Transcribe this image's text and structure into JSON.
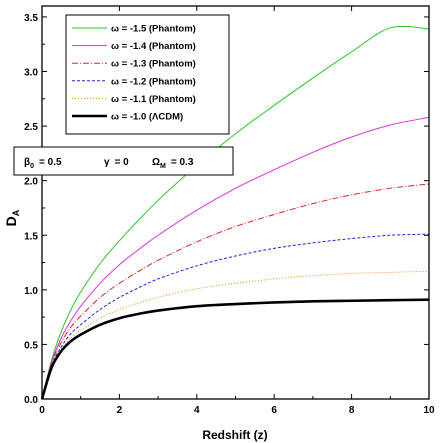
{
  "chart_data": {
    "type": "line",
    "xlabel": "Redshift (z)",
    "ylabel": "D",
    "ylabel_sub": "A",
    "xlim": [
      0,
      10
    ],
    "ylim": [
      0,
      3.6
    ],
    "xticks": [
      "0",
      "2",
      "4",
      "6",
      "8",
      "10"
    ],
    "yticks": [
      "0.0",
      "0.5",
      "1.0",
      "1.5",
      "2.0",
      "2.5",
      "3.0",
      "3.5"
    ],
    "grid": false,
    "legend_position": "top-left",
    "x": [
      0,
      0.25,
      0.5,
      0.75,
      1,
      1.5,
      2,
      2.5,
      3,
      4,
      5,
      6,
      7,
      8,
      9,
      10
    ],
    "series": [
      {
        "name": "ω = -1.5 (Phantom)",
        "color": "#22cc22",
        "dash": "solid",
        "values": [
          0,
          0.36,
          0.62,
          0.82,
          0.98,
          1.24,
          1.45,
          1.64,
          1.82,
          2.14,
          2.43,
          2.69,
          2.94,
          3.18,
          3.4,
          3.39
        ]
      },
      {
        "name": "ω = -1.4 (Phantom)",
        "color": "#dd33dd",
        "dash": "solid",
        "values": [
          0,
          0.34,
          0.56,
          0.72,
          0.85,
          1.06,
          1.23,
          1.37,
          1.5,
          1.73,
          1.93,
          2.1,
          2.26,
          2.4,
          2.51,
          2.58
        ]
      },
      {
        "name": "ω = -1.3 (Phantom)",
        "color": "#dd2222",
        "dash": "dashdot",
        "values": [
          0,
          0.33,
          0.52,
          0.66,
          0.76,
          0.93,
          1.06,
          1.17,
          1.27,
          1.44,
          1.58,
          1.69,
          1.79,
          1.87,
          1.93,
          1.97
        ]
      },
      {
        "name": "ω = -1.2 (Phantom)",
        "color": "#2222dd",
        "dash": "dash",
        "values": [
          0,
          0.31,
          0.48,
          0.6,
          0.68,
          0.82,
          0.93,
          1.02,
          1.1,
          1.22,
          1.31,
          1.38,
          1.43,
          1.47,
          1.5,
          1.51
        ]
      },
      {
        "name": "ω = -1.1 (Phantom)",
        "color": "#ee8800",
        "dash": "dot",
        "values": [
          0,
          0.3,
          0.46,
          0.56,
          0.63,
          0.74,
          0.82,
          0.88,
          0.93,
          1.01,
          1.06,
          1.1,
          1.13,
          1.15,
          1.16,
          1.17
        ]
      },
      {
        "name": "ω = -1.0  (ΛCDM)",
        "color": "#000000",
        "dash": "thick",
        "values": [
          0,
          0.29,
          0.44,
          0.53,
          0.59,
          0.68,
          0.74,
          0.78,
          0.81,
          0.85,
          0.87,
          0.885,
          0.895,
          0.9,
          0.905,
          0.91
        ]
      }
    ],
    "parameters": [
      {
        "symbol": "β",
        "sub": "0",
        "value": "= 0.5"
      },
      {
        "symbol": "γ",
        "sub": "",
        "value": "= 0"
      },
      {
        "symbol": "Ω",
        "sub": "M",
        "value": "= 0.3"
      }
    ]
  }
}
